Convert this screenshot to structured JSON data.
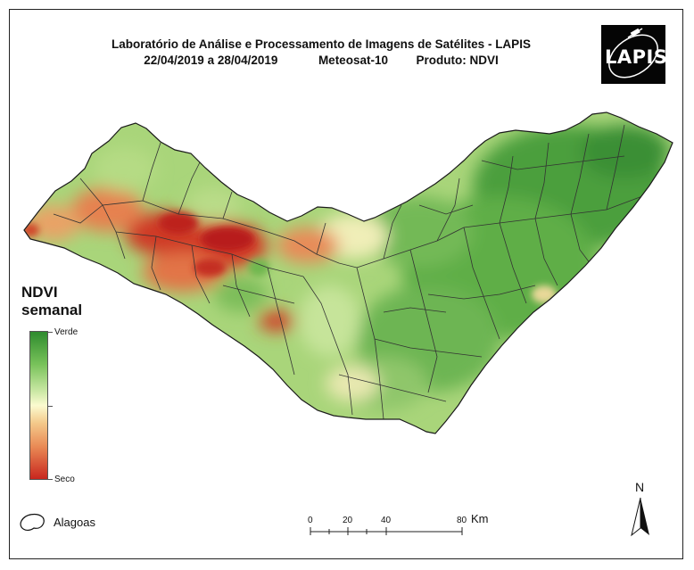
{
  "header": {
    "line1": "Laboratório de Análise e Processamento de Imagens de Satélites - LAPIS",
    "dates": "22/04/2019  a 28/04/2019",
    "satellite": "Meteosat-10",
    "product": "Produto: NDVI"
  },
  "logo": {
    "text": "LAPIS",
    "icon": "satellite-icon"
  },
  "legend": {
    "title_line1": "NDVI",
    "title_line2": "semanal",
    "top_label": "Verde",
    "bottom_label": "Seco",
    "colors": {
      "high": "#2e8b2e",
      "mid": "#fbfbd0",
      "low": "#c8261e"
    }
  },
  "boundary_legend": {
    "label": "Alagoas"
  },
  "scale_bar": {
    "ticks": [
      "0",
      "20",
      "40",
      "80"
    ],
    "unit": "Km"
  },
  "north_arrow": {
    "label": "N"
  }
}
